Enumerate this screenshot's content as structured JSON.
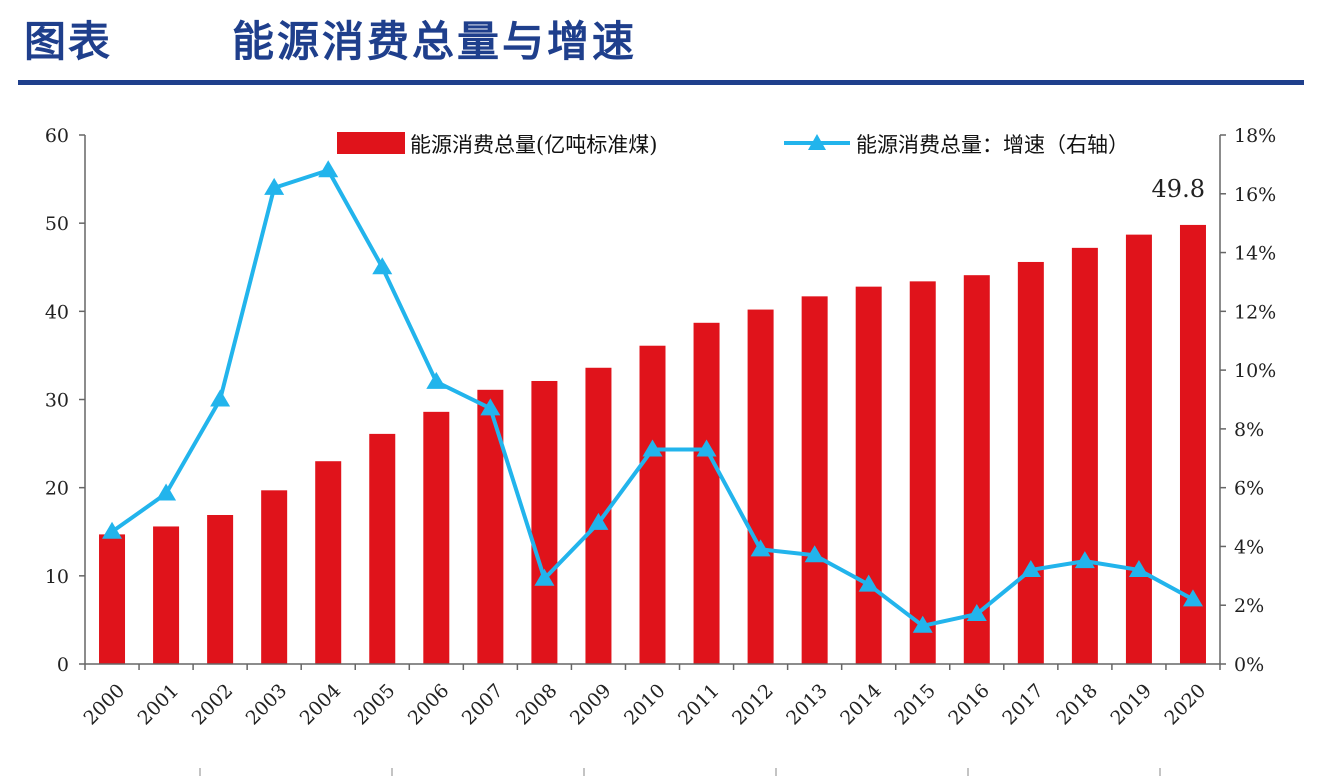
{
  "header": {
    "label": "图表",
    "title": "能源消费总量与增速"
  },
  "colors": {
    "header_blue": "#1f3f8c",
    "bar_red": "#e0131b",
    "line_blue": "#22b4ec",
    "axis": "#666666"
  },
  "chart_data": {
    "type": "bar",
    "categories": [
      "2000",
      "2001",
      "2002",
      "2003",
      "2004",
      "2005",
      "2006",
      "2007",
      "2008",
      "2009",
      "2010",
      "2011",
      "2012",
      "2013",
      "2014",
      "2015",
      "2016",
      "2017",
      "2018",
      "2019",
      "2020"
    ],
    "series": [
      {
        "name": "能源消费总量(亿吨标准煤)",
        "type": "bar",
        "axis": "left",
        "values": [
          14.7,
          15.6,
          16.9,
          19.7,
          23.0,
          26.1,
          28.6,
          31.1,
          32.1,
          33.6,
          36.1,
          38.7,
          40.2,
          41.7,
          42.8,
          43.4,
          44.1,
          45.6,
          47.2,
          48.7,
          49.8
        ]
      },
      {
        "name": "能源消费总量：增速（右轴）",
        "type": "line",
        "axis": "right",
        "marker": "triangle",
        "values": [
          4.5,
          5.8,
          9.0,
          16.2,
          16.8,
          13.5,
          9.6,
          8.7,
          2.9,
          4.8,
          7.3,
          7.3,
          3.9,
          3.7,
          2.7,
          1.3,
          1.7,
          3.2,
          3.5,
          3.2,
          2.2
        ]
      }
    ],
    "y_left": {
      "ylim": [
        0,
        60
      ],
      "ticks": [
        "0",
        "10",
        "20",
        "30",
        "40",
        "50",
        "60"
      ]
    },
    "y_right": {
      "ylim": [
        0,
        18
      ],
      "ticks": [
        "0%",
        "2%",
        "4%",
        "6%",
        "8%",
        "10%",
        "12%",
        "14%",
        "16%",
        "18%"
      ]
    },
    "annotations": [
      {
        "text": "49.8",
        "category": "2020"
      }
    ],
    "legend_position": "top",
    "grid": false
  }
}
